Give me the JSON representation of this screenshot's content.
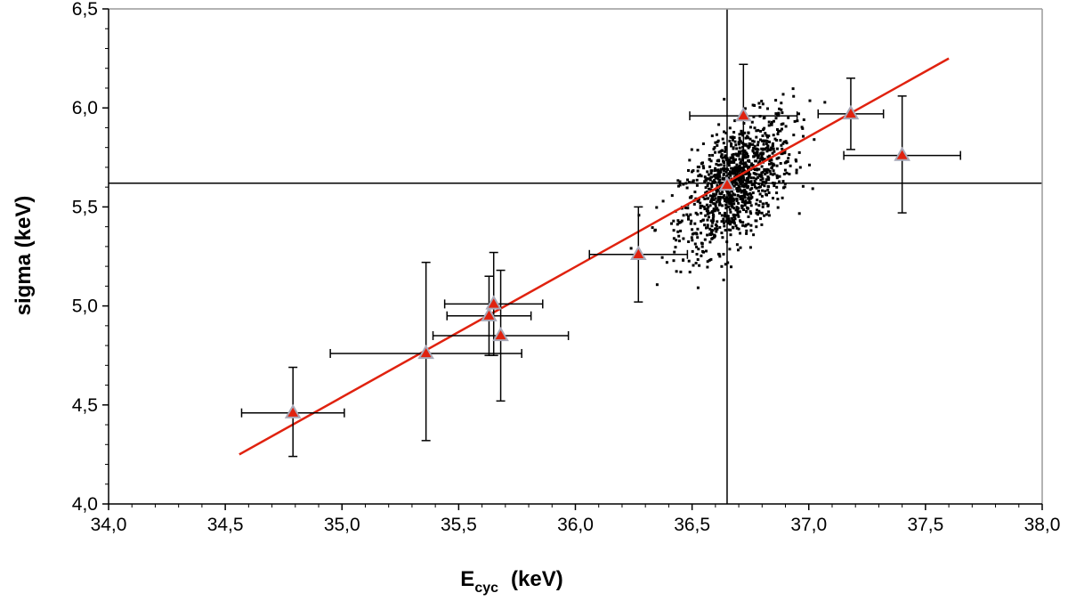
{
  "chart_data": {
    "type": "scatter",
    "title": "",
    "xlabel": "E",
    "xlabel_sub": "cyc",
    "xlabel_unit": "(keV)",
    "ylabel": "sigma  (keV)",
    "xlim": [
      34.0,
      38.0
    ],
    "ylim": [
      4.0,
      6.5
    ],
    "x_ticks": [
      "34,0",
      "34,5",
      "35,0",
      "35,5",
      "36,0",
      "36,5",
      "37,0",
      "37,5",
      "38,0"
    ],
    "y_ticks": [
      "4,0",
      "4,5",
      "5,0",
      "5,5",
      "6,0",
      "6,5"
    ],
    "grid": false,
    "colors": {
      "fit_line": "#e0220f",
      "marker_fill": "#e0220f",
      "marker_edge": "#a9a9b8",
      "cloud": "#000000",
      "frame": "#9a9a9a"
    },
    "reference_lines": {
      "x": 36.65,
      "y": 5.62
    },
    "fit_line": {
      "x": [
        34.56,
        37.6
      ],
      "y": [
        4.25,
        6.25
      ]
    },
    "measurements": [
      {
        "x": 34.79,
        "y": 4.46,
        "xerr": [
          0.22,
          0.22
        ],
        "yerr": [
          0.22,
          0.23
        ]
      },
      {
        "x": 35.36,
        "y": 4.76,
        "xerr": [
          0.41,
          0.41
        ],
        "yerr": [
          0.44,
          0.46
        ]
      },
      {
        "x": 35.63,
        "y": 4.95,
        "xerr": [
          0.18,
          0.18
        ],
        "yerr": [
          0.2,
          0.2
        ]
      },
      {
        "x": 35.65,
        "y": 5.01,
        "xerr": [
          0.21,
          0.21
        ],
        "yerr": [
          0.26,
          0.26
        ]
      },
      {
        "x": 35.68,
        "y": 4.85,
        "xerr": [
          0.29,
          0.29
        ],
        "yerr": [
          0.33,
          0.33
        ]
      },
      {
        "x": 36.27,
        "y": 5.26,
        "xerr": [
          0.21,
          0.21
        ],
        "yerr": [
          0.24,
          0.24
        ]
      },
      {
        "x": 36.65,
        "y": 5.61,
        "xerr": [
          0.0,
          0.0
        ],
        "yerr": [
          0.0,
          0.0
        ]
      },
      {
        "x": 36.72,
        "y": 5.96,
        "xerr": [
          0.23,
          0.23
        ],
        "yerr": [
          0.26,
          0.26
        ]
      },
      {
        "x": 37.18,
        "y": 5.97,
        "xerr": [
          0.14,
          0.14
        ],
        "yerr": [
          0.18,
          0.18
        ]
      },
      {
        "x": 37.4,
        "y": 5.76,
        "xerr": [
          0.25,
          0.25
        ],
        "yerr": [
          0.29,
          0.3
        ]
      }
    ],
    "simulation_cloud": {
      "count": 1100,
      "center": [
        36.69,
        5.62
      ],
      "std": [
        0.12,
        0.17
      ],
      "correlation": 0.55,
      "x_range": [
        36.15,
        37.1
      ],
      "y_range": [
        5.05,
        6.22
      ]
    }
  }
}
